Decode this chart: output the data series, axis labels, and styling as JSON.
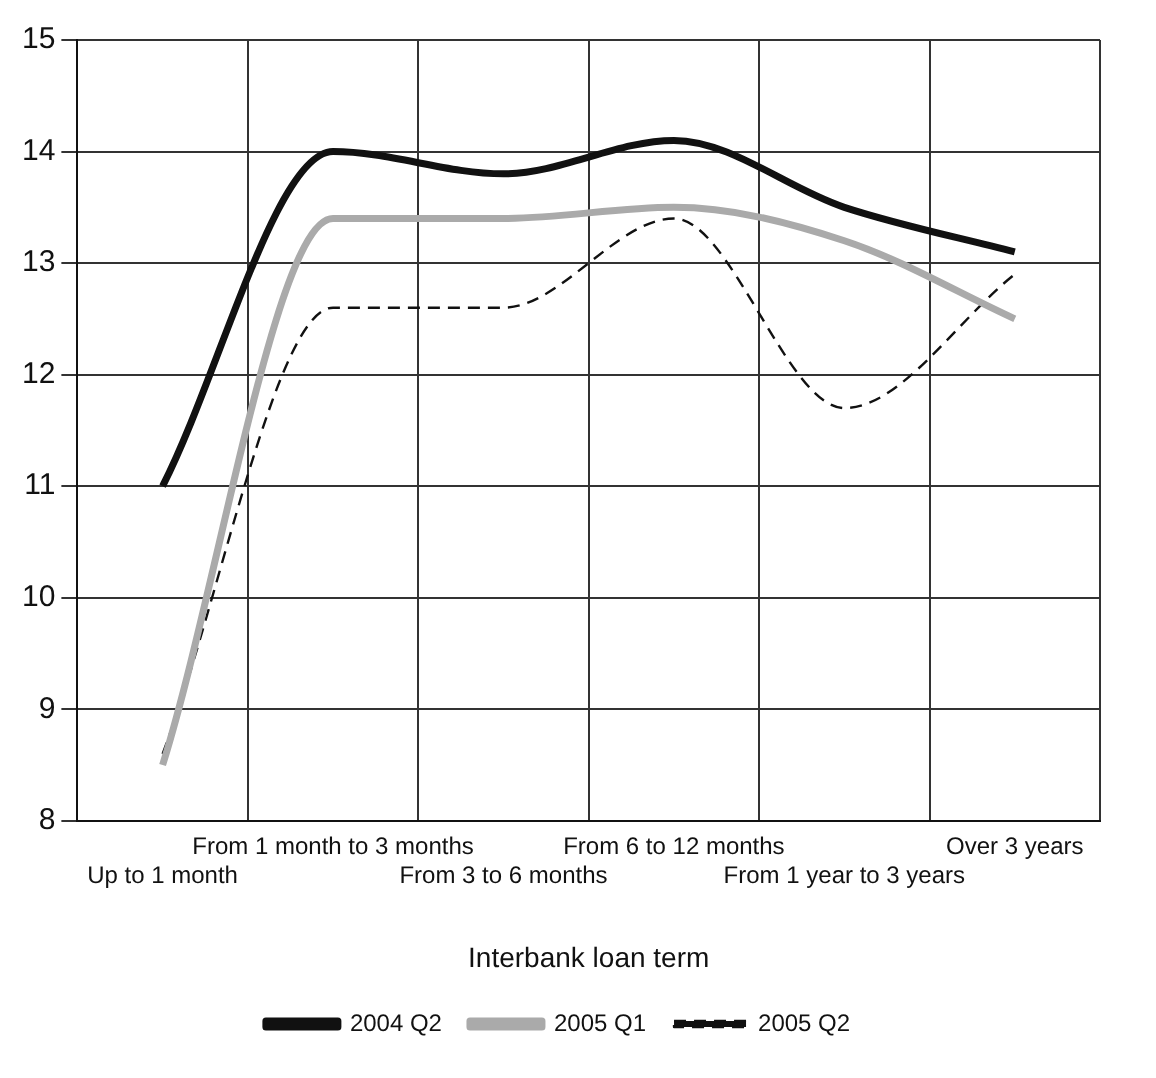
{
  "chart_data": {
    "type": "line",
    "xlabel": "Interbank loan term",
    "categories": [
      "Up to 1 month",
      "From 1 month to 3 months",
      "From 3 to 6 months",
      "From 6 to 12 months",
      "From 1 year to 3 years",
      "Over 3 years"
    ],
    "series": [
      {
        "name": "2004 Q2",
        "color": "#111111",
        "line_style": "solid",
        "values": [
          11.0,
          14.0,
          13.8,
          14.1,
          13.5,
          13.1
        ]
      },
      {
        "name": "2005 Q1",
        "color": "#aaaaaa",
        "line_style": "solid",
        "values": [
          8.5,
          13.4,
          13.4,
          13.5,
          13.2,
          12.5
        ]
      },
      {
        "name": "2005 Q2",
        "color": "#111111",
        "line_style": "dashed",
        "values": [
          8.6,
          12.6,
          12.6,
          13.4,
          11.7,
          12.9
        ]
      }
    ],
    "ylim": [
      8,
      15
    ],
    "yticks": [
      8,
      9,
      10,
      11,
      12,
      13,
      14,
      15
    ],
    "grid": true,
    "legend": "bottom",
    "marker": "none"
  }
}
